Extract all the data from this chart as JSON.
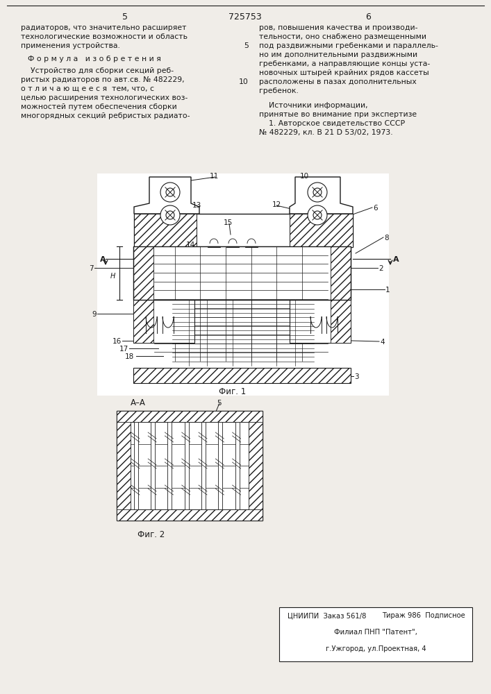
{
  "page_number_left": "5",
  "page_number_center": "725753",
  "page_number_right": "6",
  "text_col1_line1": "радиаторов, что значительно расширяет",
  "text_col1_line2": "технологические возможности и область",
  "text_col1_line3": "применения устройства.",
  "formula_header": "Ф о р м у л а   и з о б р е т е н и я",
  "formula_body_lines": [
    "    Устройство для сборки секций реб-",
    "ристых радиаторов по авт.св. № 482229,",
    "о т л и ч а ю щ е е с я  тем, что, с",
    "целью расширения технологических воз-",
    "можностей путем обеспечения сборки",
    "многорядных секций ребристых радиато-"
  ],
  "text_col2_lines": [
    "ров, повышения качества и производи-",
    "тельности, оно снабжено размещенными",
    "под раздвижными гребенками и параллель-",
    "но им дополнительными раздвижными",
    "гребенками, а направляющие концы уста-",
    "новочных штырей крайних рядов кассеты",
    "расположены в пазах дополнительных",
    "гребенок."
  ],
  "line_numbers": [
    null,
    null,
    "5",
    null,
    null,
    null,
    "10",
    null
  ],
  "sources_lines": [
    "    Источники информации,",
    "принятые во внимание при экспертизе",
    "    1. Авторское свидетельство СССР",
    "№ 482229, кл. В 21 D 53/02, 1973."
  ],
  "fig1_label": "Фиг. 1",
  "fig2_label": "Фиг. 2",
  "section_label": "А–А",
  "bottom_org": "ЦНИИПИ  Заказ 561/8",
  "bottom_tirazh": "Тираж 986  Подписное",
  "bottom_filial": "Филиал ПНП \"Патент\",",
  "bottom_city": "г.Ужгород, ул.Проектная, 4",
  "bg_color": "#f0ede8",
  "line_color": "#1a1a1a",
  "text_color": "#1a1a1a"
}
